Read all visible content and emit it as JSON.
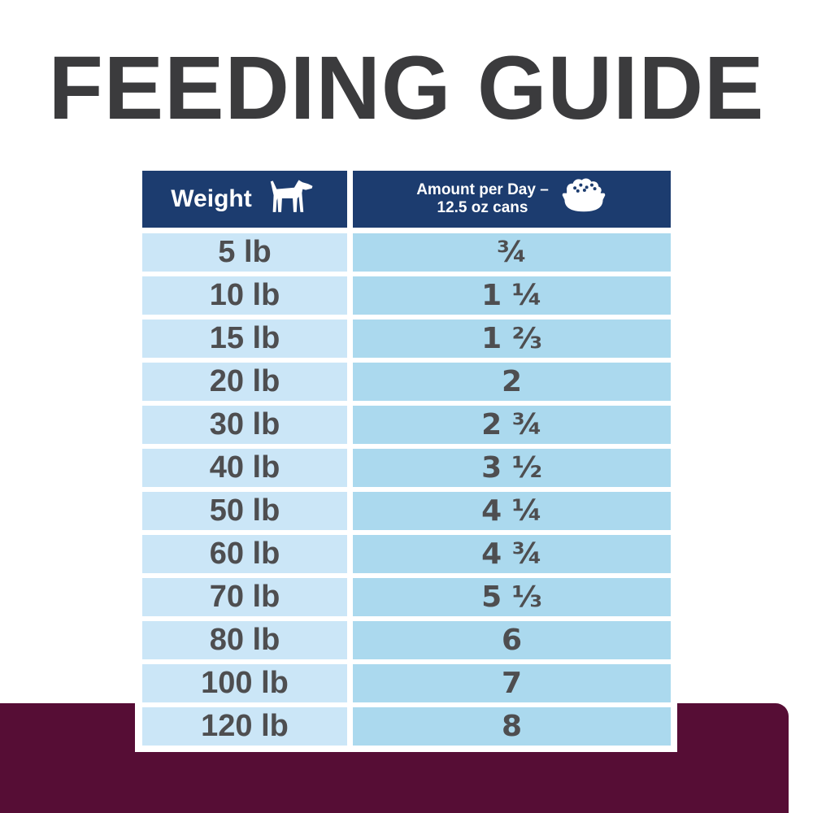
{
  "page": {
    "title": "FEEDING GUIDE"
  },
  "colors": {
    "title_text": "#3b3b3d",
    "header_navy": "#1c3c6f",
    "weight_column_blue": "#cbe6f7",
    "amount_column_blue": "#abd9ee",
    "cell_text_gray": "#4e4e50",
    "footer_maroon": "#560d35",
    "background": "#ffffff"
  },
  "table": {
    "header": {
      "weight_label": "Weight",
      "weight_icon": "dog-icon",
      "amount_label_line1": "Amount per Day –",
      "amount_label_line2": "12.5 oz cans",
      "amount_icon": "food-bowl-icon"
    },
    "rows": [
      {
        "weight": "5 lb",
        "amount": "¾"
      },
      {
        "weight": "10 lb",
        "amount": "1 ¼"
      },
      {
        "weight": "15 lb",
        "amount": "1 ⅔"
      },
      {
        "weight": "20 lb",
        "amount": "2"
      },
      {
        "weight": "30 lb",
        "amount": "2 ¾"
      },
      {
        "weight": "40 lb",
        "amount": "3 ½"
      },
      {
        "weight": "50 lb",
        "amount": "4 ¼"
      },
      {
        "weight": "60 lb",
        "amount": "4 ¾"
      },
      {
        "weight": "70 lb",
        "amount": "5 ⅓"
      },
      {
        "weight": "80 lb",
        "amount": "6"
      },
      {
        "weight": "100 lb",
        "amount": "7"
      },
      {
        "weight": "120 lb",
        "amount": "8"
      }
    ]
  }
}
